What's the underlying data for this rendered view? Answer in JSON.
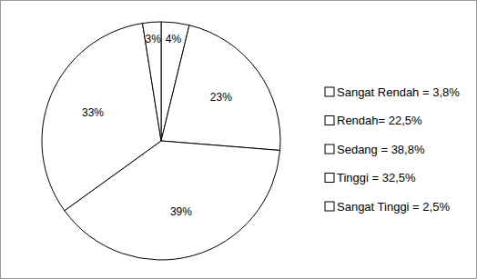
{
  "chart_data": {
    "type": "pie",
    "categories": [
      "Sangat Rendah = 3,8%",
      "Rendah= 22,5%",
      "Sedang = 38,8%",
      "Tinggi = 32,5%",
      "Sangat Tinggi = 2,5%"
    ],
    "values": [
      3.8,
      22.5,
      38.8,
      32.5,
      2.5
    ],
    "value_labels": [
      "4%",
      "23%",
      "39%",
      "33%",
      "3%"
    ],
    "colors": [
      "#ffffff",
      "#ffffff",
      "#ffffff",
      "#ffffff",
      "#ffffff"
    ],
    "data_labels": true,
    "legend": "right"
  }
}
